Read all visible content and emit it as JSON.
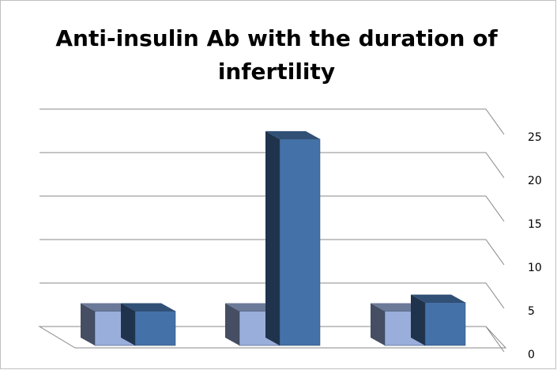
{
  "chart_data": {
    "type": "bar3d",
    "title": "Anti-insulin Ab with the duration of infertility",
    "categories": [
      null,
      null,
      null
    ],
    "series": [
      {
        "color": "#9aaedb",
        "values": [
          4,
          4,
          4
        ]
      },
      {
        "color": "#4472a8",
        "values": [
          4,
          24,
          5
        ]
      }
    ],
    "ylim": [
      0,
      25
    ],
    "yticks": [
      0,
      5,
      10,
      15,
      20,
      25
    ],
    "grid": true
  }
}
